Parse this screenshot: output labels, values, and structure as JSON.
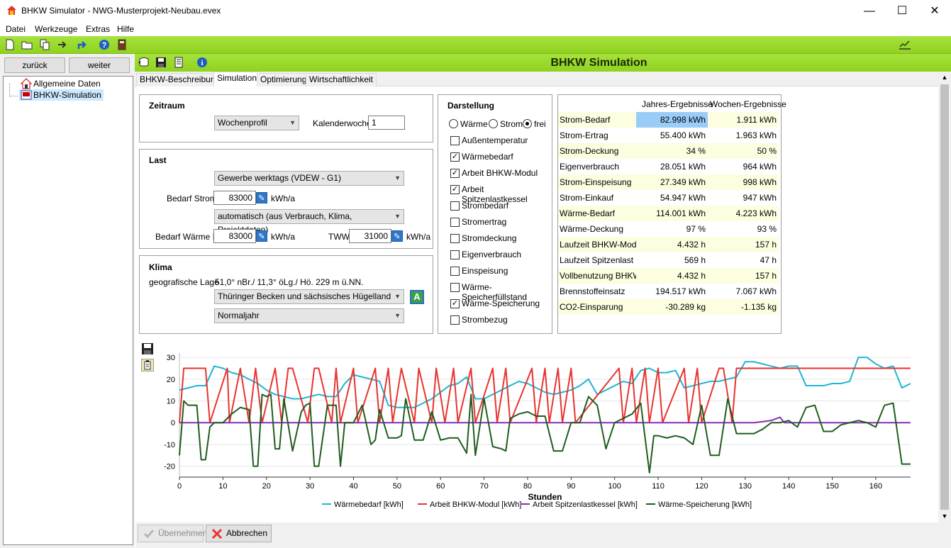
{
  "window": {
    "title": "BHKW Simulator - NWG-Musterprojekt-Neubau.evex",
    "minimize": "—",
    "maximize": "☐",
    "close": "✕"
  },
  "menu": [
    "Datei",
    "Werkzeuge",
    "Extras",
    "Hilfe"
  ],
  "nav": {
    "back": "zurück",
    "forward": "weiter"
  },
  "tree": [
    {
      "label": "Allgemeine Daten"
    },
    {
      "label": "BHKW-Simulation"
    }
  ],
  "header": {
    "title": "BHKW Simulation"
  },
  "tabs": [
    {
      "label": "BHKW-Beschreibung"
    },
    {
      "label": "Simulation"
    },
    {
      "label": "Optimierung"
    },
    {
      "label": "Wirtschaftlichkeit"
    }
  ],
  "zeitraum": {
    "title": "Zeitraum",
    "profile": "Wochenprofil",
    "kw_label": "Kalenderwoche",
    "kw_value": "1"
  },
  "last": {
    "title": "Last",
    "profile": "Gewerbe werktags (VDEW - G1)",
    "strom_label": "Bedarf Strom",
    "strom_value": "83000",
    "unit": "kWh/a",
    "mode": "automatisch (aus Verbrauch, Klima, Projektdaten)",
    "waerme_label": "Bedarf Wärme H",
    "waerme_value": "83000",
    "tww_label": "TWW",
    "tww_value": "31000"
  },
  "klima": {
    "title": "Klima",
    "lage_label": "geografische Lage",
    "lage_value": "51,0° nBr./ 11,3° öLg./ Hö. 229 m ü.NN.",
    "region": "Thüringer Becken und sächsisches Hügelland",
    "year": "Normaljahr",
    "a_button": "A"
  },
  "darstellung": {
    "title": "Darstellung",
    "radios": [
      {
        "label": "Wärme",
        "on": false
      },
      {
        "label": "Strom",
        "on": false
      },
      {
        "label": "frei",
        "on": true
      }
    ],
    "checks": [
      {
        "label": "Außentemperatur",
        "on": false
      },
      {
        "label": "Wärmebedarf",
        "on": true
      },
      {
        "label": "Arbeit BHKW-Modul",
        "on": true
      },
      {
        "label": "Arbeit Spitzenlastkessel",
        "on": true
      },
      {
        "label": "Strombedarf",
        "on": false
      },
      {
        "label": "Stromertrag",
        "on": false
      },
      {
        "label": "Stromdeckung",
        "on": false
      },
      {
        "label": "Eigenverbrauch",
        "on": false
      },
      {
        "label": "Einspeisung",
        "on": false
      },
      {
        "label": "Wärme-Speicherfüllstand",
        "on": false
      },
      {
        "label": "Wärme-Speicherung",
        "on": true
      },
      {
        "label": "Strombezug",
        "on": false
      }
    ]
  },
  "results": {
    "col1": "Jahres-Ergebnisse",
    "col2": "Wochen-Ergebnisse",
    "rows": [
      {
        "name": "Strom-Bedarf",
        "year": "82.998 kWh",
        "week": "1.911 kWh"
      },
      {
        "name": "Strom-Ertrag",
        "year": "55.400 kWh",
        "week": "1.963 kWh"
      },
      {
        "name": "Strom-Deckung",
        "year": "34 %",
        "week": "50 %"
      },
      {
        "name": "Eigenverbrauch",
        "year": "28.051 kWh",
        "week": "964 kWh"
      },
      {
        "name": "Strom-Einspeisung",
        "year": "27.349 kWh",
        "week": "998 kWh"
      },
      {
        "name": "Strom-Einkauf",
        "year": "54.947 kWh",
        "week": "947 kWh"
      },
      {
        "name": "Wärme-Bedarf",
        "year": "114.001 kWh",
        "week": "4.223 kWh"
      },
      {
        "name": "Wärme-Deckung",
        "year": "97 %",
        "week": "93 %"
      },
      {
        "name": "Laufzeit BHKW-Modul",
        "year": "4.432 h",
        "week": "157 h"
      },
      {
        "name": "Laufzeit Spitzenlast",
        "year": "569 h",
        "week": "47 h"
      },
      {
        "name": "Vollbenutzung BHKW",
        "year": "4.432 h",
        "week": "157 h"
      },
      {
        "name": "Brennstoffeinsatz",
        "year": "194.517 kWh",
        "week": "7.067 kWh"
      },
      {
        "name": "CO2-Einsparung",
        "year": "-30.289 kg",
        "week": "-1.135 kg"
      }
    ]
  },
  "buttons": {
    "apply": "Übernehmen",
    "cancel": "Abbrechen"
  },
  "chart_data": {
    "type": "line",
    "xlabel": "Stunden",
    "xlim": [
      0,
      168
    ],
    "ylim": [
      -25,
      32
    ],
    "xticks": [
      0,
      10,
      20,
      30,
      40,
      50,
      60,
      70,
      80,
      90,
      100,
      110,
      120,
      130,
      140,
      150,
      160
    ],
    "yticks": [
      -20,
      -10,
      0,
      10,
      20,
      30
    ],
    "series": [
      {
        "name": "Wärmebedarf [kWh]",
        "color": "#1fb5d3",
        "x": [
          0,
          2,
          4,
          6,
          8,
          10,
          12,
          14,
          16,
          18,
          20,
          22,
          24,
          26,
          28,
          30,
          32,
          34,
          36,
          38,
          40,
          42,
          44,
          46,
          48,
          50,
          52,
          54,
          56,
          58,
          60,
          62,
          64,
          66,
          68,
          70,
          72,
          74,
          76,
          78,
          80,
          82,
          84,
          86,
          88,
          90,
          92,
          94,
          96,
          98,
          100,
          102,
          104,
          106,
          108,
          110,
          112,
          114,
          116,
          118,
          120,
          122,
          124,
          126,
          128,
          130,
          132,
          134,
          136,
          138,
          140,
          142,
          144,
          146,
          148,
          150,
          152,
          154,
          156,
          158,
          160,
          162,
          164,
          166,
          168
        ],
        "values": [
          15,
          16,
          17,
          17,
          26,
          25,
          23,
          22,
          20,
          18,
          15,
          13,
          12,
          11,
          11,
          12,
          13,
          12,
          12,
          18,
          22,
          21,
          20,
          19,
          8,
          7,
          7,
          7,
          9,
          11,
          14,
          17,
          18,
          21,
          11,
          11,
          13,
          15,
          17,
          19,
          18,
          16,
          14,
          13,
          14,
          15,
          17,
          20,
          13,
          15,
          17,
          19,
          18,
          24,
          25,
          23,
          23,
          24,
          16,
          17,
          18,
          19,
          19,
          20,
          21,
          28,
          28,
          27,
          26,
          25,
          26,
          26,
          17,
          17,
          17,
          18,
          18,
          19,
          30,
          30,
          27,
          25,
          26,
          16,
          18
        ]
      },
      {
        "name": "Arbeit BHKW-Modul [kWh]",
        "color": "#e8332e",
        "x": [
          0,
          1,
          6,
          7,
          11,
          11.5,
          14,
          16,
          17.5,
          19,
          22,
          23.5,
          25,
          26,
          29.5,
          31,
          32,
          35,
          36,
          37,
          40,
          41,
          45,
          46,
          48,
          49,
          51,
          54,
          55,
          58,
          59,
          61,
          63,
          64,
          67,
          68,
          72,
          73,
          75,
          76,
          81,
          82,
          84,
          85,
          87,
          88,
          90,
          91,
          101,
          102,
          104,
          105,
          107,
          108,
          110,
          111,
          116,
          117,
          119,
          120,
          124,
          125,
          127,
          128,
          168
        ],
        "values": [
          0,
          25,
          25,
          0,
          25,
          0,
          25,
          0,
          25,
          0,
          25,
          0,
          25,
          25,
          0,
          25,
          25,
          0,
          25,
          0,
          25,
          0,
          25,
          0,
          25,
          0,
          25,
          0,
          25,
          0,
          25,
          0,
          25,
          0,
          25,
          0,
          25,
          0,
          25,
          0,
          25,
          0,
          25,
          0,
          25,
          0,
          25,
          0,
          25,
          0,
          25,
          0,
          25,
          0,
          25,
          0,
          25,
          0,
          25,
          0,
          25,
          25,
          0,
          25,
          25
        ]
      },
      {
        "name": "Arbeit Spitzenlastkessel [kWh]",
        "color": "#8a2fb5",
        "x": [
          0,
          132,
          136,
          138,
          139,
          168
        ],
        "values": [
          0,
          0,
          1,
          2.5,
          0,
          0
        ]
      },
      {
        "name": "Wärme-Speicherung [kWh]",
        "color": "#1f5c1f",
        "x": [
          0,
          1,
          2,
          4,
          5,
          6,
          7,
          8,
          10,
          12,
          14,
          16,
          17,
          18,
          19,
          20,
          21,
          22,
          23,
          24,
          26,
          28,
          29,
          30,
          31,
          32,
          34,
          36,
          37,
          38,
          40,
          42,
          44,
          45,
          46,
          48,
          50,
          51,
          52,
          54,
          56,
          58,
          60,
          62,
          64,
          66,
          67,
          68,
          70,
          72,
          74,
          75,
          76,
          78,
          80,
          82,
          84,
          86,
          88,
          90,
          92,
          94,
          96,
          98,
          100,
          102,
          104,
          106,
          108,
          109,
          110,
          112,
          114,
          116,
          118,
          120,
          122,
          124,
          126,
          128,
          130,
          132,
          134,
          136,
          138,
          140,
          142,
          144,
          146,
          148,
          150,
          152,
          154,
          156,
          158,
          160,
          162,
          164,
          166,
          168
        ],
        "values": [
          -15,
          10,
          8,
          8,
          -17,
          -17,
          -2,
          0,
          0,
          4,
          7,
          6,
          -20,
          -20,
          13,
          12,
          13,
          -12,
          -12,
          11,
          -13,
          5,
          8,
          9,
          -20,
          -20,
          8,
          8,
          -20,
          0,
          0,
          8,
          -10,
          -8,
          6,
          -7,
          -7,
          -6,
          11,
          -8,
          -8,
          5,
          -8,
          -7,
          -7,
          -14,
          13,
          -15,
          11,
          -11,
          -12,
          -13,
          2,
          4,
          5,
          3,
          3,
          -13,
          -13,
          0,
          0,
          12,
          8,
          -12,
          0,
          2,
          4,
          9,
          -23,
          -6,
          -6,
          -7,
          -6,
          -7,
          -10,
          8,
          -15,
          -15,
          11,
          -5,
          -5,
          -5,
          -3,
          0,
          0,
          1,
          -2,
          7,
          8,
          -4,
          -4,
          -1,
          0,
          1,
          0,
          -2,
          8,
          9,
          -19,
          -19
        ]
      }
    ]
  }
}
